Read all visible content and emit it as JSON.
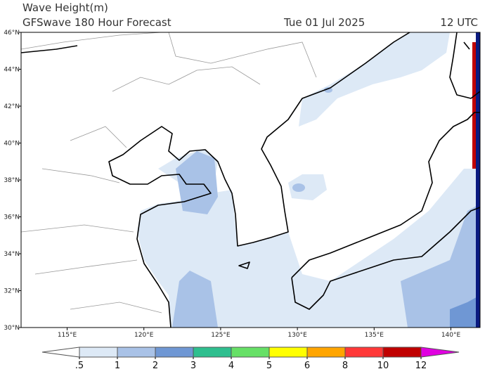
{
  "header": {
    "title": "Wave Height(m)",
    "subtitle": "GFSwave 180 Hour Forecast",
    "date": "Tue 01 Jul 2025",
    "time": "12 UTC"
  },
  "map": {
    "lon_range": [
      112,
      141.9
    ],
    "lat_range": [
      30,
      46
    ],
    "lon_ticks": [
      {
        "value": 115,
        "label": "115°E"
      },
      {
        "value": 120,
        "label": "120°E"
      },
      {
        "value": 125,
        "label": "125°E"
      },
      {
        "value": 130,
        "label": "130°E"
      },
      {
        "value": 135,
        "label": "135°E"
      },
      {
        "value": 140,
        "label": "140°E"
      }
    ],
    "lat_ticks": [
      {
        "value": 30,
        "label": "30°N"
      },
      {
        "value": 32,
        "label": "32°N"
      },
      {
        "value": 34,
        "label": "34°N"
      },
      {
        "value": 36,
        "label": "36°N"
      },
      {
        "value": 38,
        "label": "38°N"
      },
      {
        "value": 40,
        "label": "40°N"
      },
      {
        "value": 42,
        "label": "42°N"
      },
      {
        "value": 44,
        "label": "44°N"
      },
      {
        "value": 46,
        "label": "46°N"
      }
    ]
  },
  "colorbar": {
    "levels": [
      {
        "value": 0.5,
        "label": ".5"
      },
      1,
      2,
      3,
      4,
      5,
      6,
      8,
      10,
      12
    ],
    "colors": [
      "#ffffff",
      "#dde9f6",
      "#a9c2e7",
      "#6f97d4",
      "#2fbf8f",
      "#66e066",
      "#ffff00",
      "#ffa500",
      "#ff3838",
      "#c00000",
      "#e000e0"
    ]
  }
}
